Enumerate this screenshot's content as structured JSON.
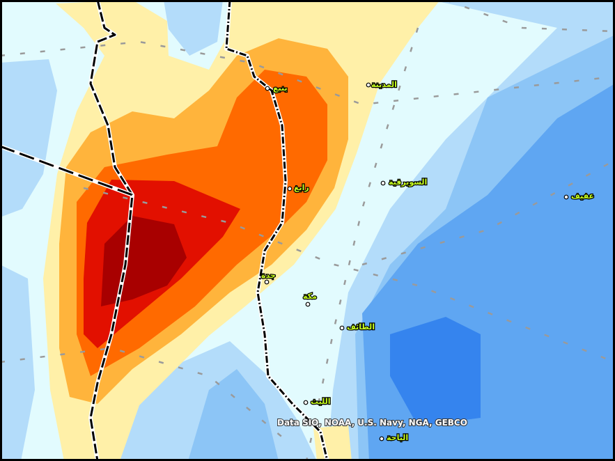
{
  "map": {
    "cities": [
      {
        "label": "ينبع"
      },
      {
        "label": "المدينة"
      },
      {
        "label": "رابغ"
      },
      {
        "label": "السويرقية"
      },
      {
        "label": "عفيف"
      },
      {
        "label": "جدة"
      },
      {
        "label": "مكة"
      },
      {
        "label": "الطائف"
      },
      {
        "label": "الليث"
      },
      {
        "label": "الباحة"
      }
    ],
    "attribution": "Data SIO, NOAA, U.S. Navy, NGA, GEBCO"
  }
}
